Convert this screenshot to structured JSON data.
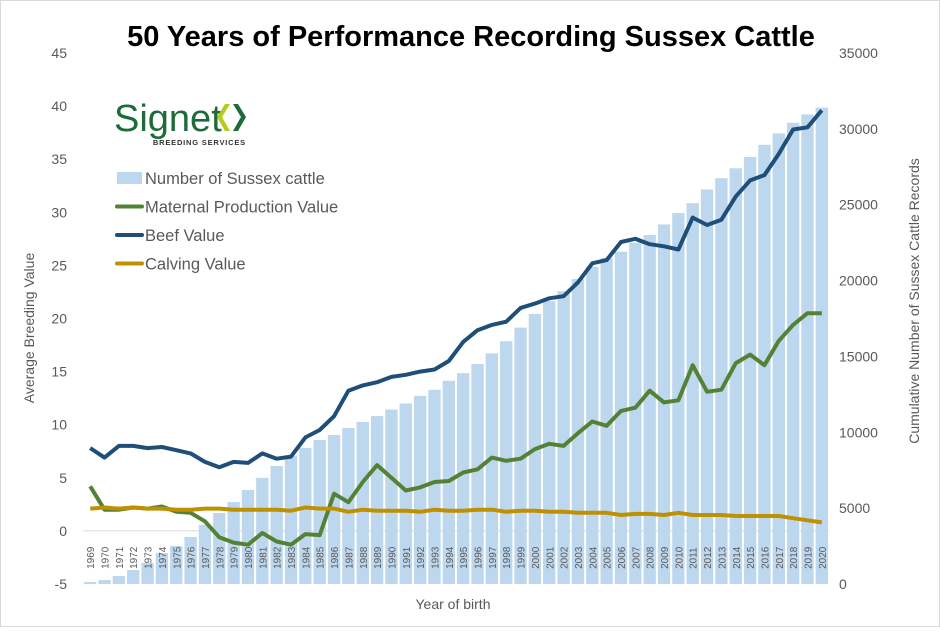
{
  "chart_data": {
    "type": "bar+line",
    "title": "50 Years of Performance Recording Sussex Cattle",
    "xlabel": "Year of birth",
    "ylabel": "Average Breeding Value",
    "y2label": "Cumulative Number of Sussex Cattle Records",
    "ylim": [
      -5,
      45
    ],
    "yticks": [
      -5,
      0,
      5,
      10,
      15,
      20,
      25,
      30,
      35,
      40,
      45
    ],
    "y2lim": [
      0,
      35000
    ],
    "y2ticks": [
      0,
      5000,
      10000,
      15000,
      20000,
      25000,
      30000,
      35000
    ],
    "legend_position": "top-left",
    "logo": {
      "name": "Signet",
      "subtitle": "BREEDING SERVICES"
    },
    "categories": [
      "1969",
      "1970",
      "1971",
      "1972",
      "1973",
      "1974",
      "1975",
      "1976",
      "1977",
      "1978",
      "1979",
      "1980",
      "1981",
      "1982",
      "1983",
      "1984",
      "1985",
      "1986",
      "1987",
      "1988",
      "1989",
      "1990",
      "1991",
      "1992",
      "1993",
      "1994",
      "1995",
      "1996",
      "1997",
      "1998",
      "1999",
      "2000",
      "2001",
      "2002",
      "2003",
      "2004",
      "2005",
      "2006",
      "2007",
      "2008",
      "2009",
      "2010",
      "2011",
      "2012",
      "2013",
      "2014",
      "2015",
      "2016",
      "2017",
      "2018",
      "2019",
      "2020"
    ],
    "series": [
      {
        "name": "Number of Sussex cattle",
        "type": "bar",
        "axis": "right",
        "color": "#BDD7EE",
        "values": [
          130,
          260,
          530,
          920,
          1380,
          2040,
          2500,
          3100,
          3900,
          4680,
          5400,
          6200,
          7000,
          7780,
          8440,
          8960,
          9490,
          9820,
          10280,
          10680,
          11070,
          11500,
          11900,
          12400,
          12800,
          13400,
          13900,
          14500,
          15200,
          16000,
          16900,
          17800,
          18650,
          19300,
          20100,
          20900,
          21500,
          21900,
          22500,
          23000,
          23700,
          24450,
          25100,
          26000,
          26750,
          27400,
          28150,
          28950,
          29700,
          30400,
          30950,
          31400
        ]
      },
      {
        "name": "Maternal Production Value",
        "type": "line",
        "axis": "left",
        "color": "#548235",
        "values": [
          4.2,
          2.0,
          2.0,
          2.2,
          2.1,
          2.3,
          1.8,
          1.7,
          0.9,
          -0.6,
          -1.1,
          -1.3,
          -0.2,
          -1.0,
          -1.3,
          -0.3,
          -0.4,
          3.5,
          2.7,
          4.6,
          6.2,
          5.0,
          3.8,
          4.1,
          4.6,
          4.7,
          5.5,
          5.8,
          6.9,
          6.6,
          6.8,
          7.7,
          8.2,
          8.0,
          9.2,
          10.3,
          9.9,
          11.3,
          11.6,
          13.2,
          12.1,
          12.3,
          15.6,
          13.1,
          13.3,
          15.8,
          16.6,
          15.6,
          17.9,
          19.4,
          20.5,
          20.5
        ]
      },
      {
        "name": "Beef Value",
        "type": "line",
        "axis": "left",
        "color": "#1F4E79",
        "values": [
          7.8,
          6.9,
          8.0,
          8.0,
          7.8,
          7.9,
          7.6,
          7.3,
          6.5,
          6.0,
          6.5,
          6.4,
          7.3,
          6.8,
          7.0,
          8.8,
          9.5,
          10.8,
          13.2,
          13.7,
          14.0,
          14.5,
          14.7,
          15.0,
          15.2,
          16.0,
          17.8,
          18.9,
          19.4,
          19.7,
          21.0,
          21.4,
          21.9,
          22.1,
          23.4,
          25.2,
          25.5,
          27.2,
          27.5,
          27.0,
          26.8,
          26.5,
          29.5,
          28.8,
          29.3,
          31.5,
          33.0,
          33.5,
          35.5,
          37.8,
          38.0,
          39.6
        ]
      },
      {
        "name": "Calving Value",
        "type": "line",
        "axis": "left",
        "color": "#BF9000",
        "values": [
          2.1,
          2.2,
          2.1,
          2.2,
          2.1,
          2.1,
          2.0,
          2.0,
          2.1,
          2.1,
          2.0,
          2.0,
          2.0,
          2.0,
          1.9,
          2.2,
          2.1,
          2.1,
          1.8,
          2.0,
          1.9,
          1.9,
          1.9,
          1.8,
          2.0,
          1.9,
          1.9,
          2.0,
          2.0,
          1.8,
          1.9,
          1.9,
          1.8,
          1.8,
          1.7,
          1.7,
          1.7,
          1.5,
          1.6,
          1.6,
          1.5,
          1.7,
          1.5,
          1.5,
          1.5,
          1.4,
          1.4,
          1.4,
          1.4,
          1.2,
          1.0,
          0.8
        ]
      }
    ]
  }
}
